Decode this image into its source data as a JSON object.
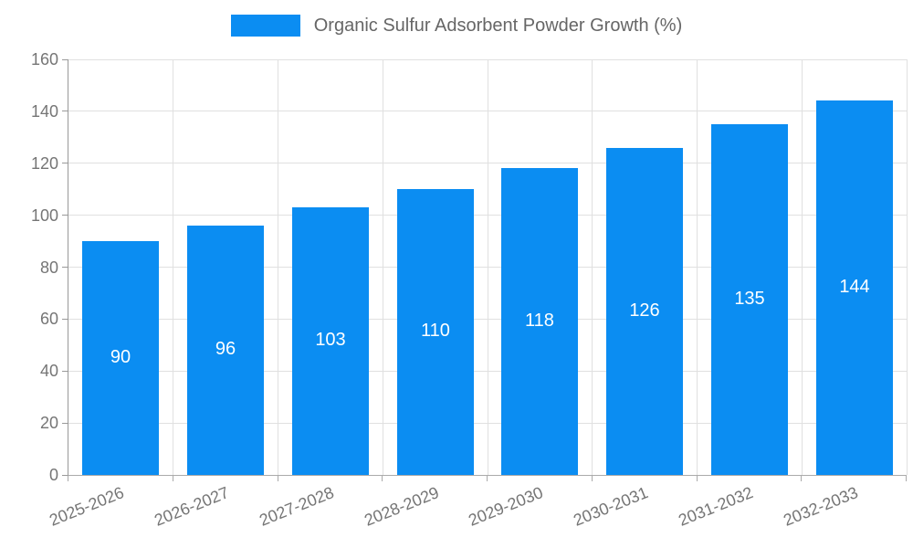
{
  "legend": {
    "label": "Organic Sulfur Adsorbent Powder Growth (%)",
    "swatch_color": "#0b8df2"
  },
  "chart_data": {
    "type": "bar",
    "title": "Organic Sulfur Adsorbent Powder Growth (%)",
    "categories": [
      "2025-2026",
      "2026-2027",
      "2027-2028",
      "2028-2029",
      "2029-2030",
      "2030-2031",
      "2031-2032",
      "2032-2033"
    ],
    "values": [
      90,
      96,
      103,
      110,
      118,
      126,
      135,
      144
    ],
    "xlabel": "",
    "ylabel": "",
    "ylim": [
      0,
      160
    ],
    "yticks": [
      0,
      20,
      40,
      60,
      80,
      100,
      120,
      140,
      160
    ],
    "grid": true,
    "legend_position": "top-center",
    "bar_color": "#0b8df2",
    "value_label_color": "#ffffff",
    "tick_label_color": "#757575",
    "gridline_color": "#e0e0e0",
    "axis_line_color": "#999999"
  }
}
